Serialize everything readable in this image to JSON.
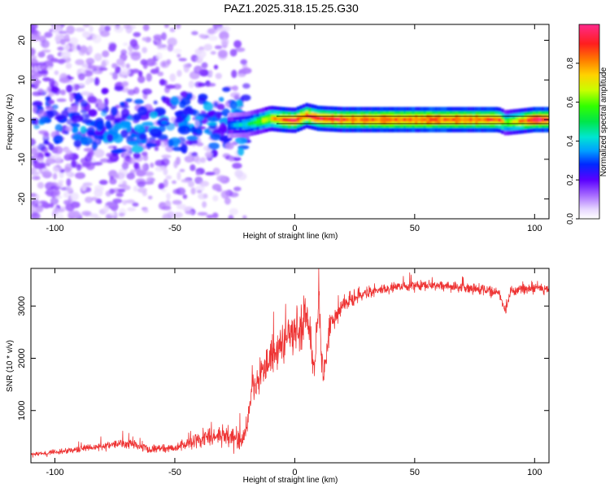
{
  "title": "PAZ1.2025.318.15.25.G30",
  "chart_data": [
    {
      "type": "heatmap",
      "xlabel": "Height of straight line (km)",
      "ylabel": "Frequency (Hz)",
      "xlim": [
        -110,
        106
      ],
      "ylim": [
        -25,
        24
      ],
      "xticks": [
        -100,
        -50,
        0,
        50,
        100
      ],
      "yticks": [
        -20,
        -10,
        0,
        10,
        20
      ],
      "colorbar": {
        "label": "Normalized spectral amplitude",
        "range": [
          0,
          1
        ],
        "ticks": [
          0.0,
          0.2,
          0.4,
          0.6,
          0.8
        ],
        "tick_labels": [
          "0.0",
          "0.2",
          "0.4",
          "0.6",
          "0.8"
        ]
      },
      "ridge": [
        {
          "x": -28,
          "y": -1.5,
          "amp": 0.3
        },
        {
          "x": -20,
          "y": -1.2,
          "amp": 0.45
        },
        {
          "x": -15,
          "y": -0.5,
          "amp": 0.6
        },
        {
          "x": -10,
          "y": 0.3,
          "amp": 0.7
        },
        {
          "x": -5,
          "y": 0.0,
          "amp": 0.85
        },
        {
          "x": 0,
          "y": -0.2,
          "amp": 0.9
        },
        {
          "x": 5,
          "y": 1.0,
          "amp": 0.85
        },
        {
          "x": 10,
          "y": 0.3,
          "amp": 0.9
        },
        {
          "x": 20,
          "y": 0.0,
          "amp": 0.9
        },
        {
          "x": 40,
          "y": 0.0,
          "amp": 0.95
        },
        {
          "x": 60,
          "y": 0.0,
          "amp": 0.95
        },
        {
          "x": 85,
          "y": 0.0,
          "amp": 0.9
        },
        {
          "x": 88,
          "y": -0.8,
          "amp": 0.6
        },
        {
          "x": 100,
          "y": 0.0,
          "amp": 0.95
        },
        {
          "x": 106,
          "y": 0.0,
          "amp": 0.95
        }
      ],
      "noise_region": {
        "x": [
          -110,
          -20
        ],
        "y": [
          -25,
          24
        ],
        "amp_max": 0.35
      }
    },
    {
      "type": "line",
      "xlabel": "Height of straight line (km)",
      "ylabel": "SNR (10 * v/v)",
      "xlim": [
        -110,
        106
      ],
      "ylim": [
        0,
        3720
      ],
      "xticks": [
        -100,
        -50,
        0,
        50,
        100
      ],
      "yticks": [
        1000,
        2000,
        3000
      ],
      "color": "#ee3333",
      "series": [
        {
          "name": "SNR",
          "x": [
            -110,
            -100,
            -90,
            -80,
            -70,
            -60,
            -50,
            -45,
            -40,
            -35,
            -30,
            -25,
            -22,
            -20,
            -18,
            -15,
            -12,
            -10,
            -8,
            -5,
            -3,
            0,
            3,
            5,
            8,
            10,
            12,
            15,
            20,
            25,
            30,
            35,
            40,
            50,
            60,
            70,
            80,
            85,
            88,
            90,
            95,
            100,
            106
          ],
          "values": [
            150,
            200,
            260,
            320,
            380,
            260,
            280,
            350,
            450,
            500,
            550,
            480,
            350,
            700,
            1350,
            1600,
            1800,
            2000,
            2100,
            2300,
            2400,
            2500,
            2700,
            2900,
            1700,
            3100,
            1600,
            2700,
            3000,
            3150,
            3250,
            3300,
            3350,
            3380,
            3400,
            3350,
            3300,
            3250,
            2900,
            3280,
            3320,
            3350,
            3330
          ],
          "noise": [
            40,
            50,
            60,
            70,
            90,
            70,
            80,
            110,
            140,
            180,
            220,
            200,
            160,
            300,
            300,
            300,
            320,
            320,
            330,
            360,
            380,
            400,
            500,
            500,
            300,
            500,
            300,
            250,
            160,
            130,
            110,
            100,
            100,
            100,
            100,
            100,
            100,
            100,
            80,
            100,
            100,
            100,
            90
          ]
        }
      ]
    }
  ]
}
